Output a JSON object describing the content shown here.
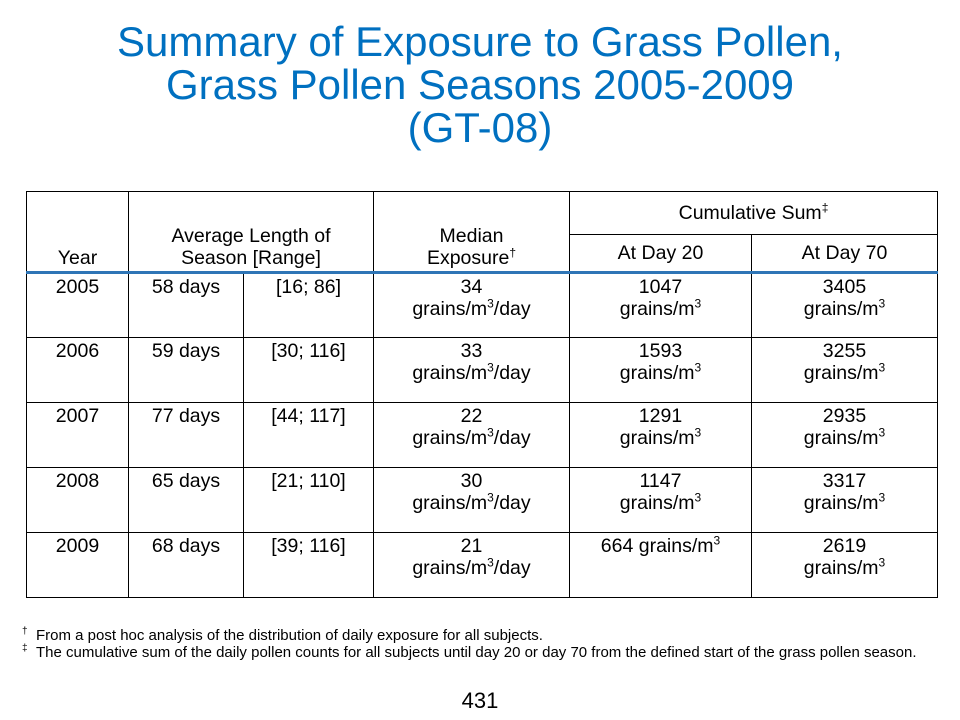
{
  "title": {
    "line1": "Summary of Exposure to Grass Pollen,",
    "line2": "Grass Pollen Seasons 2005-2009",
    "line3": "(GT-08)"
  },
  "table": {
    "headers": {
      "year": "Year",
      "length_line1": "Average Length of",
      "length_line2": "Season [Range]",
      "median_line1": "Median",
      "median_line2": "Exposure",
      "median_mark": "†",
      "cumulative": "Cumulative Sum",
      "cumulative_mark": "‡",
      "day20": "At Day 20",
      "day70": "At Day 70"
    },
    "rows": [
      {
        "year": "2005",
        "length": "58 days",
        "range": "[16; 86]",
        "median_value": "34",
        "day20_value": "1047",
        "day70_value": "3405"
      },
      {
        "year": "2006",
        "length": "59 days",
        "range": "[30; 116]",
        "median_value": "33",
        "day20_value": "1593",
        "day70_value": "3255"
      },
      {
        "year": "2007",
        "length": "77 days",
        "range": "[44; 117]",
        "median_value": "22",
        "day20_value": "1291",
        "day70_value": "2935"
      },
      {
        "year": "2008",
        "length": "65 days",
        "range": "[21; 110]",
        "median_value": "30",
        "day20_value": "1147",
        "day70_value": "3317"
      },
      {
        "year": "2009",
        "length": "68 days",
        "range": "[39; 116]",
        "median_value": "21",
        "day20_value": "664",
        "day70_value": "2619"
      }
    ],
    "units": {
      "median_pre": "grains/m",
      "median_sup": "3",
      "median_post": "/day",
      "cum_pre": "grains/m",
      "cum_sup": "3"
    }
  },
  "footnotes": [
    {
      "mark": "†",
      "text": "From a post hoc analysis of the distribution of daily exposure for all subjects."
    },
    {
      "mark": "‡",
      "text": "The cumulative sum of the daily pollen counts for all subjects until day 20 or day 70 from the defined start of the grass pollen season."
    }
  ],
  "page_number": "431"
}
